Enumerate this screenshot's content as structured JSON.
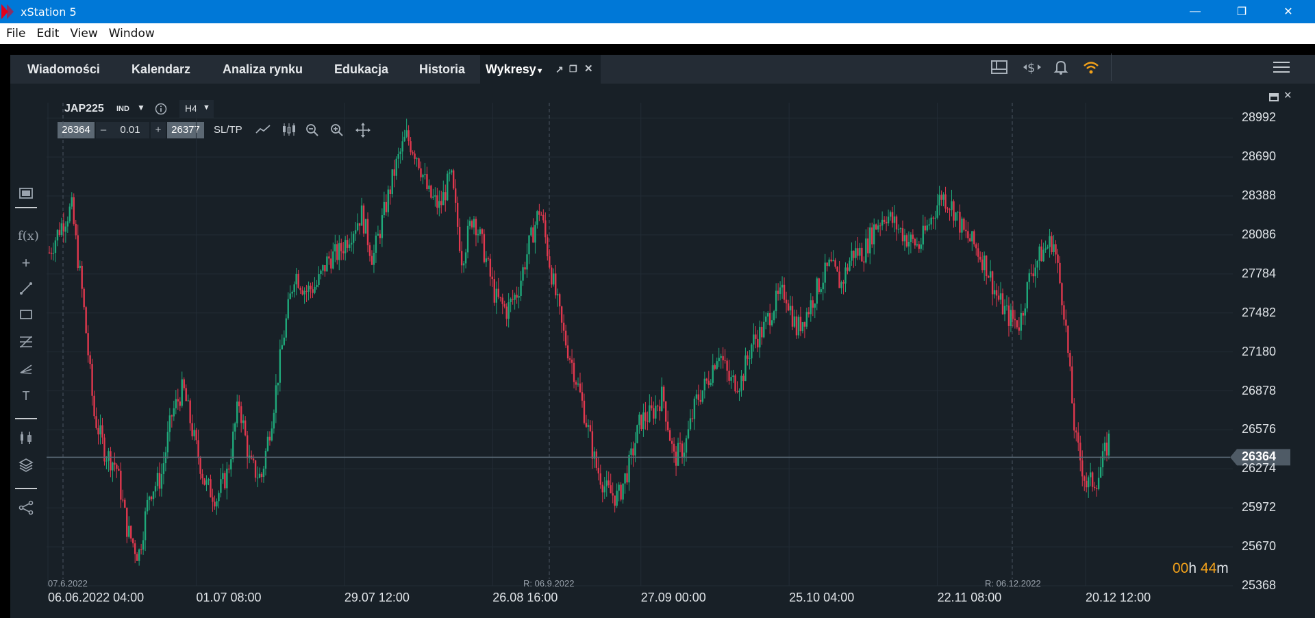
{
  "window": {
    "title": "xStation 5",
    "minimize": "—",
    "restore": "❐",
    "close": "✕"
  },
  "menu": [
    "File",
    "Edit",
    "View",
    "Window"
  ],
  "tabs": [
    {
      "label": "Wiadomości",
      "active": false
    },
    {
      "label": "Kalendarz",
      "active": false
    },
    {
      "label": "Analiza rynku",
      "active": false
    },
    {
      "label": "Edukacja",
      "active": false
    },
    {
      "label": "Historia",
      "active": false
    },
    {
      "label": "Wykresy",
      "active": true
    }
  ],
  "toolbar_right": {
    "icons": [
      "layout-icon",
      "currency-icon",
      "bell-icon",
      "wifi-icon",
      "hamburger-icon"
    ],
    "wifi_color": "#f2a11a"
  },
  "chart_header": {
    "symbol": "JAP225",
    "category": "IND",
    "timeframe": "H4",
    "sell_price": "26364",
    "volume": "0.01",
    "buy_price": "26377",
    "sltp": "SL/TP",
    "minus": "–",
    "plus": "+"
  },
  "countdown": {
    "hours": "00",
    "h": "h",
    "minutes": "44",
    "m": "m",
    "color": "#f2a11a"
  },
  "chart_data": {
    "type": "candlestick",
    "title": "",
    "symbol": "JAP225",
    "timeframe": "H4",
    "current_price": 26364,
    "current_price_label": "26364",
    "y_ticks": [
      "28992",
      "28690",
      "28388",
      "28086",
      "27784",
      "27482",
      "27180",
      "26878",
      "26576",
      "26274",
      "25972",
      "25670",
      "25368"
    ],
    "y_tick_values": [
      28992,
      28690,
      28388,
      28086,
      27784,
      27482,
      27180,
      26878,
      26576,
      26274,
      25972,
      25670,
      25368
    ],
    "ylim": [
      25368,
      29110
    ],
    "x_ticks": [
      "06.06.2022 04:00",
      "01.07 08:00",
      "29.07 12:00",
      "26.08 16:00",
      "27.09 00:00",
      "25.10 04:00",
      "22.11 08:00",
      "20.12 12:00"
    ],
    "markers": [
      {
        "label": "07.6.2022"
      },
      {
        "label": "R: 06.9.2022"
      },
      {
        "label": "R: 06.12.2022"
      }
    ],
    "series": [
      {
        "values": [
          27950,
          28150,
          28300,
          27600,
          26700,
          26400,
          26300,
          25800,
          25600,
          26100,
          26200,
          26700,
          26900,
          26500,
          26150,
          26050,
          26250,
          26800,
          26300,
          26200,
          26700,
          27300,
          27800,
          27650,
          27700,
          27900,
          27950,
          28100,
          28250,
          27900,
          28250,
          28600,
          28850,
          28700,
          28400,
          28300,
          28550,
          27900,
          28250,
          27950,
          27600,
          27500,
          27650,
          28000,
          28300,
          27800,
          27350,
          27050,
          26700,
          26300,
          26100,
          26050,
          26300,
          26650,
          26700,
          26850,
          26350,
          26450,
          26800,
          26950,
          27200,
          26950,
          26950,
          27250,
          27350,
          27550,
          27650,
          27350,
          27500,
          27700,
          27850,
          27700,
          27950,
          27950,
          28150,
          28250,
          28150,
          28050,
          28000,
          28200,
          28400,
          28300,
          28100,
          28000,
          27850,
          27600,
          27450,
          27400,
          27800,
          27950,
          28050,
          27500,
          26500,
          26150,
          26200,
          26500
        ]
      }
    ],
    "grid": true,
    "horizontal_line": 26364
  }
}
